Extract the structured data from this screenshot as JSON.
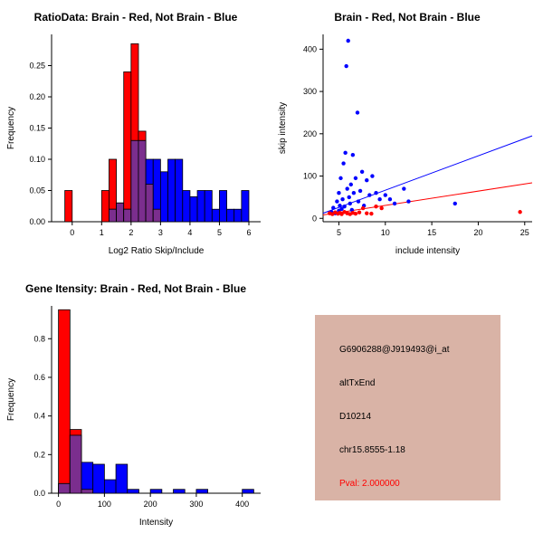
{
  "colors": {
    "red": "#ff0000",
    "blue": "#0000ff",
    "purple": "#7b2e8e",
    "axis": "#000000"
  },
  "chart_data": [
    {
      "id": "ratio_hist",
      "type": "bar",
      "subtype": "overlaid-histogram",
      "title": "RatioData: Brain - Red, Not Brain - Blue",
      "xlabel": "Log2 Ratio Skip/Include",
      "ylabel": "Frequency",
      "xlim": [
        -0.7,
        6.4
      ],
      "ylim": [
        0,
        0.3
      ],
      "xticks": [
        [
          0,
          "0"
        ],
        [
          1,
          "1"
        ],
        [
          2,
          "2"
        ],
        [
          3,
          "3"
        ],
        [
          4,
          "4"
        ],
        [
          5,
          "5"
        ],
        [
          6,
          "6"
        ]
      ],
      "yticks": [
        [
          0,
          "0.00"
        ],
        [
          0.05,
          "0.05"
        ],
        [
          0.1,
          "0.10"
        ],
        [
          0.15,
          "0.15"
        ],
        [
          0.2,
          "0.20"
        ],
        [
          0.25,
          "0.25"
        ]
      ],
      "bin_width": 0.25,
      "legend": [
        {
          "name": "Brain",
          "color": "red"
        },
        {
          "name": "Not Brain",
          "color": "blue"
        }
      ],
      "series": [
        {
          "name": "Brain",
          "color": "red",
          "bins": [
            [
              -0.25,
              0.05
            ],
            [
              1.0,
              0.05
            ],
            [
              1.25,
              0.1
            ],
            [
              1.5,
              0.03
            ],
            [
              1.75,
              0.24
            ],
            [
              2.0,
              0.285
            ],
            [
              2.25,
              0.145
            ],
            [
              2.5,
              0.06
            ],
            [
              2.75,
              0.02
            ]
          ]
        },
        {
          "name": "Not Brain",
          "color": "blue",
          "bins": [
            [
              1.25,
              0.02
            ],
            [
              1.5,
              0.03
            ],
            [
              1.75,
              0.02
            ],
            [
              2.0,
              0.13
            ],
            [
              2.25,
              0.13
            ],
            [
              2.5,
              0.1
            ],
            [
              2.75,
              0.1
            ],
            [
              3.0,
              0.08
            ],
            [
              3.25,
              0.1
            ],
            [
              3.5,
              0.1
            ],
            [
              3.75,
              0.05
            ],
            [
              4.0,
              0.04
            ],
            [
              4.25,
              0.05
            ],
            [
              4.5,
              0.05
            ],
            [
              4.75,
              0.02
            ],
            [
              5.0,
              0.05
            ],
            [
              5.25,
              0.02
            ],
            [
              5.5,
              0.02
            ],
            [
              5.75,
              0.05
            ]
          ]
        }
      ]
    },
    {
      "id": "scatter",
      "type": "scatter",
      "title": "Brain - Red, Not Brain - Blue",
      "xlabel": "include intensity",
      "ylabel": "skip intensity",
      "xlim": [
        3.3,
        25.8
      ],
      "ylim": [
        -8,
        435
      ],
      "xticks": [
        [
          5,
          "5"
        ],
        [
          10,
          "10"
        ],
        [
          15,
          "15"
        ],
        [
          20,
          "20"
        ],
        [
          25,
          "25"
        ]
      ],
      "yticks": [
        [
          0,
          "0"
        ],
        [
          100,
          "100"
        ],
        [
          200,
          "200"
        ],
        [
          300,
          "300"
        ],
        [
          400,
          "400"
        ]
      ],
      "series": [
        {
          "name": "Not Brain",
          "color": "blue",
          "points": [
            [
              4.2,
              15
            ],
            [
              4.4,
              25
            ],
            [
              4.6,
              12
            ],
            [
              4.8,
              40
            ],
            [
              5.0,
              18
            ],
            [
              5.0,
              60
            ],
            [
              5.1,
              30
            ],
            [
              5.2,
              95
            ],
            [
              5.3,
              22
            ],
            [
              5.4,
              45
            ],
            [
              5.5,
              130
            ],
            [
              5.6,
              28
            ],
            [
              5.7,
              155
            ],
            [
              5.8,
              360
            ],
            [
              5.9,
              70
            ],
            [
              6.0,
              420
            ],
            [
              6.1,
              50
            ],
            [
              6.2,
              35
            ],
            [
              6.3,
              80
            ],
            [
              6.4,
              20
            ],
            [
              6.5,
              150
            ],
            [
              6.6,
              60
            ],
            [
              6.8,
              95
            ],
            [
              7.0,
              250
            ],
            [
              7.1,
              40
            ],
            [
              7.3,
              65
            ],
            [
              7.5,
              110
            ],
            [
              7.7,
              30
            ],
            [
              8.0,
              90
            ],
            [
              8.3,
              55
            ],
            [
              8.6,
              100
            ],
            [
              9.0,
              60
            ],
            [
              9.4,
              45
            ],
            [
              10.0,
              55
            ],
            [
              10.5,
              45
            ],
            [
              11.0,
              35
            ],
            [
              12.0,
              70
            ],
            [
              12.5,
              40
            ],
            [
              17.5,
              35
            ]
          ]
        },
        {
          "name": "Brain",
          "color": "red",
          "points": [
            [
              4.0,
              12
            ],
            [
              4.3,
              10
            ],
            [
              4.6,
              14
            ],
            [
              4.9,
              11
            ],
            [
              5.1,
              13
            ],
            [
              5.3,
              10
            ],
            [
              5.6,
              15
            ],
            [
              5.9,
              12
            ],
            [
              6.2,
              10
            ],
            [
              6.5,
              13
            ],
            [
              6.8,
              11
            ],
            [
              7.2,
              14
            ],
            [
              7.6,
              24
            ],
            [
              8.0,
              12
            ],
            [
              8.5,
              11
            ],
            [
              9.0,
              28
            ],
            [
              9.6,
              24
            ],
            [
              24.5,
              15
            ]
          ]
        }
      ],
      "lines": [
        {
          "color": "blue",
          "x1": 3.3,
          "y1": 12,
          "x2": 25.8,
          "y2": 195
        },
        {
          "color": "red",
          "x1": 3.3,
          "y1": 8,
          "x2": 25.8,
          "y2": 84
        }
      ]
    },
    {
      "id": "gene_hist",
      "type": "bar",
      "subtype": "overlaid-histogram",
      "title": "Gene Itensity: Brain - Red, Not Brain - Blue",
      "xlabel": "Intensity",
      "ylabel": "Frequency",
      "xlim": [
        -15,
        440
      ],
      "ylim": [
        0,
        0.97
      ],
      "xticks": [
        [
          0,
          "0"
        ],
        [
          100,
          "100"
        ],
        [
          200,
          "200"
        ],
        [
          300,
          "300"
        ],
        [
          400,
          "400"
        ]
      ],
      "yticks": [
        [
          0,
          "0.0"
        ],
        [
          0.2,
          "0.2"
        ],
        [
          0.4,
          "0.4"
        ],
        [
          0.6,
          "0.6"
        ],
        [
          0.8,
          "0.8"
        ]
      ],
      "bin_width": 25,
      "legend": [
        {
          "name": "Brain",
          "color": "red"
        },
        {
          "name": "Not Brain",
          "color": "blue"
        }
      ],
      "series": [
        {
          "name": "Brain",
          "color": "red",
          "bins": [
            [
              0,
              0.95
            ],
            [
              25,
              0.33
            ],
            [
              50,
              0.02
            ]
          ]
        },
        {
          "name": "Not Brain",
          "color": "blue",
          "bins": [
            [
              0,
              0.05
            ],
            [
              25,
              0.3
            ],
            [
              50,
              0.16
            ],
            [
              75,
              0.15
            ],
            [
              100,
              0.07
            ],
            [
              125,
              0.15
            ],
            [
              150,
              0.02
            ],
            [
              200,
              0.02
            ],
            [
              250,
              0.02
            ],
            [
              300,
              0.02
            ],
            [
              400,
              0.02
            ]
          ]
        }
      ]
    }
  ],
  "info_panel": {
    "bg": "#d9b3a6",
    "lines": [
      {
        "text": "G6906288@J919493@i_at",
        "color": "#000000"
      },
      {
        "text": "altTxEnd",
        "color": "#000000"
      },
      {
        "text": "D10214",
        "color": "#000000"
      },
      {
        "text": "chr15.8555-1.18",
        "color": "#000000"
      },
      {
        "text": "Pval: 2.000000",
        "color": "#ff0000"
      }
    ]
  }
}
